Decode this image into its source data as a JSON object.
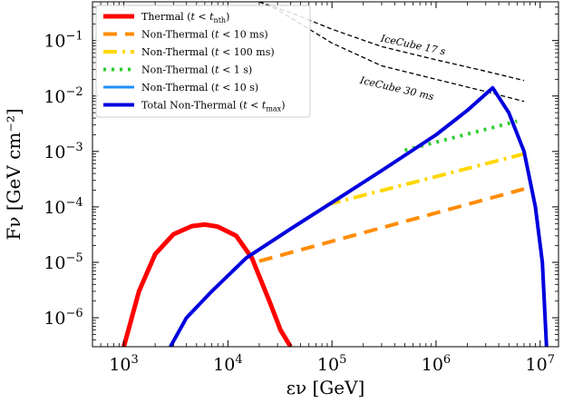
{
  "chart_data": {
    "type": "line",
    "xlabel": "εν [GeV]",
    "ylabel": "Fν [GeV cm⁻²]",
    "xscale": "log",
    "yscale": "log",
    "xlim": [
      500,
      15000000
    ],
    "ylim": [
      3e-07,
      0.5
    ],
    "x_ticks": [
      {
        "value": 1000,
        "mantissa": "10",
        "exp": "3"
      },
      {
        "value": 10000,
        "mantissa": "10",
        "exp": "4"
      },
      {
        "value": 100000,
        "mantissa": "10",
        "exp": "5"
      },
      {
        "value": 1000000,
        "mantissa": "10",
        "exp": "6"
      },
      {
        "value": 10000000,
        "mantissa": "10",
        "exp": "7"
      }
    ],
    "y_ticks": [
      {
        "value": 0.1,
        "mantissa": "10",
        "exp": "−1"
      },
      {
        "value": 0.01,
        "mantissa": "10",
        "exp": "−2"
      },
      {
        "value": 0.001,
        "mantissa": "10",
        "exp": "−3"
      },
      {
        "value": 0.0001,
        "mantissa": "10",
        "exp": "−4"
      },
      {
        "value": 1e-05,
        "mantissa": "10",
        "exp": "−5"
      },
      {
        "value": 1e-06,
        "mantissa": "10",
        "exp": "−6"
      }
    ],
    "legend_position": "top-left",
    "series": [
      {
        "name": "Thermal (t < t_nth)",
        "legend": {
          "base": "Thermal (",
          "italic": "t",
          "rel": " < ",
          "sub_base": "t",
          "sub": "nth",
          "tail": ")"
        },
        "color": "#ff0000",
        "width": 5,
        "dash": "",
        "points": [
          [
            1000,
            3e-07
          ],
          [
            1400,
            3e-06
          ],
          [
            2000,
            1.4e-05
          ],
          [
            3000,
            3.2e-05
          ],
          [
            4500,
            4.5e-05
          ],
          [
            6000,
            4.8e-05
          ],
          [
            8000,
            4.4e-05
          ],
          [
            12000,
            3e-05
          ],
          [
            17000,
            1.2e-05
          ],
          [
            25000,
            2e-06
          ],
          [
            32000,
            6e-07
          ],
          [
            40000,
            3e-07
          ]
        ]
      },
      {
        "name": "Non-Thermal (t < 10 ms)",
        "legend": {
          "base": "Non-Thermal (",
          "italic": "t",
          "rel": " < 10 ms)"
        },
        "color": "#ff8c00",
        "width": 4,
        "dash": "15,9",
        "points": [
          [
            20000,
            1.05e-05
          ],
          [
            7000000,
            0.00021
          ]
        ]
      },
      {
        "name": "Non-Thermal (t < 100 ms)",
        "legend": {
          "base": "Non-Thermal (",
          "italic": "t",
          "rel": " < 100 ms)"
        },
        "color": "#ffd700",
        "width": 4,
        "dash": "15,6,3,6",
        "points": [
          [
            90000,
            0.00011
          ],
          [
            7000000,
            0.0009
          ]
        ]
      },
      {
        "name": "Non-Thermal (t < 1 s)",
        "legend": {
          "base": "Non-Thermal (",
          "italic": "t",
          "rel": " < 1 s)"
        },
        "color": "#33cc33",
        "width": 4,
        "dash": "3,6",
        "points": [
          [
            500000,
            0.00105
          ],
          [
            6000000,
            0.0035
          ]
        ]
      },
      {
        "name": "Non-Thermal (t < 10 s)",
        "legend": {
          "base": "Non-Thermal (",
          "italic": "t",
          "rel": " < 10 s)"
        },
        "color": "#1e90ff",
        "width": 3,
        "dash": "",
        "points": [
          [
            2800,
            3e-07
          ],
          [
            4000,
            1e-06
          ],
          [
            7000,
            3e-06
          ],
          [
            15000,
            1.2e-05
          ],
          [
            40000,
            4e-05
          ],
          [
            100000,
            0.00012
          ],
          [
            300000,
            0.00045
          ],
          [
            1000000,
            0.002
          ],
          [
            2000000,
            0.0055
          ],
          [
            3500000,
            0.014
          ],
          [
            5000000,
            0.005
          ],
          [
            7000000,
            0.001
          ],
          [
            9000000,
            0.0001
          ],
          [
            10500000,
            1e-05
          ],
          [
            11500000,
            3e-07
          ]
        ]
      },
      {
        "name": "Total Non-Thermal (t < t_max)",
        "legend": {
          "base": "Total Non-Thermal (",
          "italic": "t",
          "rel": " < ",
          "sub_base": "t",
          "sub": "max",
          "tail": ")"
        },
        "color": "#0000dd",
        "width": 4,
        "dash": "",
        "points": [
          [
            2800,
            3e-07
          ],
          [
            4000,
            1e-06
          ],
          [
            7000,
            3e-06
          ],
          [
            15000,
            1.2e-05
          ],
          [
            40000,
            4e-05
          ],
          [
            100000,
            0.00012
          ],
          [
            300000,
            0.00045
          ],
          [
            1000000,
            0.002
          ],
          [
            2000000,
            0.0055
          ],
          [
            3500000,
            0.014
          ],
          [
            5000000,
            0.005
          ],
          [
            7000000,
            0.001
          ],
          [
            9000000,
            0.0001
          ],
          [
            10500000,
            1e-05
          ],
          [
            11500000,
            3e-07
          ]
        ]
      }
    ],
    "reference_curves": [
      {
        "label": "IceCube 17 s",
        "color": "#000000",
        "points": [
          [
            20000,
            0.5
          ],
          [
            40000,
            0.32
          ],
          [
            100000,
            0.16
          ],
          [
            300000,
            0.078
          ],
          [
            1000000,
            0.045
          ],
          [
            3000000,
            0.028
          ],
          [
            7000000,
            0.019
          ]
        ]
      },
      {
        "label": "IceCube 30 ms",
        "color": "#000000",
        "points": [
          [
            20000,
            0.5
          ],
          [
            30000,
            0.36
          ],
          [
            100000,
            0.09
          ],
          [
            300000,
            0.035
          ],
          [
            1000000,
            0.02
          ],
          [
            3000000,
            0.012
          ],
          [
            7000000,
            0.008
          ]
        ]
      }
    ]
  }
}
